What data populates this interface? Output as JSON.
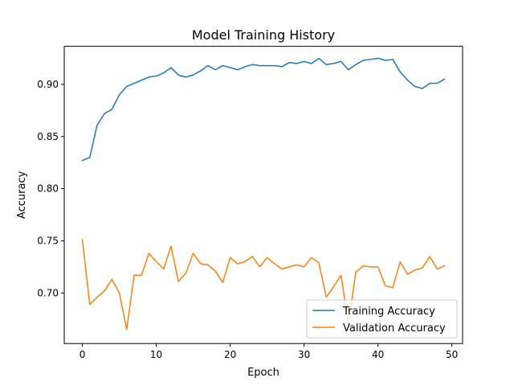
{
  "chart_data": {
    "type": "line",
    "title": "Model Training History",
    "xlabel": "Epoch",
    "ylabel": "Accuracy",
    "xlim": [
      -2.45,
      51.45
    ],
    "ylim": [
      0.6515,
      0.9365
    ],
    "xticks": [
      0,
      10,
      20,
      30,
      40,
      50
    ],
    "yticks": [
      0.7,
      0.75,
      0.8,
      0.85,
      0.9
    ],
    "xtick_labels": [
      "0",
      "10",
      "20",
      "30",
      "40",
      "50"
    ],
    "ytick_labels": [
      "0.70",
      "0.75",
      "0.80",
      "0.85",
      "0.90"
    ],
    "grid": false,
    "legend": "lower-right",
    "x": [
      0,
      1,
      2,
      3,
      4,
      5,
      6,
      7,
      8,
      9,
      10,
      11,
      12,
      13,
      14,
      15,
      16,
      17,
      18,
      19,
      20,
      21,
      22,
      23,
      24,
      25,
      26,
      27,
      28,
      29,
      30,
      31,
      32,
      33,
      34,
      35,
      36,
      37,
      38,
      39,
      40,
      41,
      42,
      43,
      44,
      45,
      46,
      47,
      48,
      49
    ],
    "series": [
      {
        "name": "Training Accuracy",
        "color": "#1f77b4",
        "values": [
          0.827,
          0.83,
          0.861,
          0.872,
          0.876,
          0.89,
          0.898,
          0.901,
          0.904,
          0.907,
          0.908,
          0.911,
          0.916,
          0.909,
          0.907,
          0.909,
          0.913,
          0.918,
          0.914,
          0.918,
          0.916,
          0.914,
          0.917,
          0.919,
          0.918,
          0.918,
          0.918,
          0.917,
          0.921,
          0.92,
          0.922,
          0.92,
          0.925,
          0.919,
          0.92,
          0.922,
          0.914,
          0.919,
          0.923,
          0.924,
          0.925,
          0.923,
          0.924,
          0.912,
          0.904,
          0.898,
          0.896,
          0.901,
          0.901,
          0.905
        ]
      },
      {
        "name": "Validation Accuracy",
        "color": "#ff7f0e",
        "values": [
          0.751,
          0.689,
          0.696,
          0.702,
          0.713,
          0.7,
          0.665,
          0.717,
          0.717,
          0.738,
          0.73,
          0.723,
          0.745,
          0.711,
          0.719,
          0.738,
          0.728,
          0.727,
          0.721,
          0.71,
          0.734,
          0.728,
          0.73,
          0.735,
          0.725,
          0.734,
          0.728,
          0.723,
          0.725,
          0.727,
          0.725,
          0.734,
          0.729,
          0.696,
          0.706,
          0.717,
          0.67,
          0.72,
          0.726,
          0.725,
          0.725,
          0.707,
          0.705,
          0.73,
          0.718,
          0.722,
          0.724,
          0.735,
          0.723,
          0.726
        ]
      }
    ]
  }
}
